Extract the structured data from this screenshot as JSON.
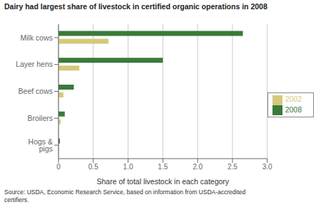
{
  "chart_data": {
    "type": "bar",
    "orientation": "horizontal",
    "title": "Dairy had largest share of livestock in certified organic operations in 2008",
    "categories": [
      "Milk cows",
      "Layer hens",
      "Beef cows",
      "Broilers",
      "Hogs & pigs"
    ],
    "series": [
      {
        "name": "2008",
        "color": "#3a7a3a",
        "values": [
          2.65,
          1.5,
          0.22,
          0.09,
          0.02
        ]
      },
      {
        "name": "2002",
        "color": "#d4c97a",
        "values": [
          0.72,
          0.3,
          0.07,
          0.03,
          0.01
        ]
      }
    ],
    "xlabel": "Share of total livestock in each category",
    "xlim": [
      0,
      3.0
    ],
    "xticks": [
      0,
      0.5,
      {
        "value": 1.0,
        "label": "1.0"
      },
      1.5,
      {
        "value": 2.0,
        "label": "2.0"
      },
      2.5,
      {
        "value": 3.0,
        "label": "3.0"
      }
    ],
    "grid": true,
    "legend": "right",
    "annotations": [
      "Source: USDA, Economic Research Service, based on information from USDA-accredited\ncertifiers."
    ]
  }
}
